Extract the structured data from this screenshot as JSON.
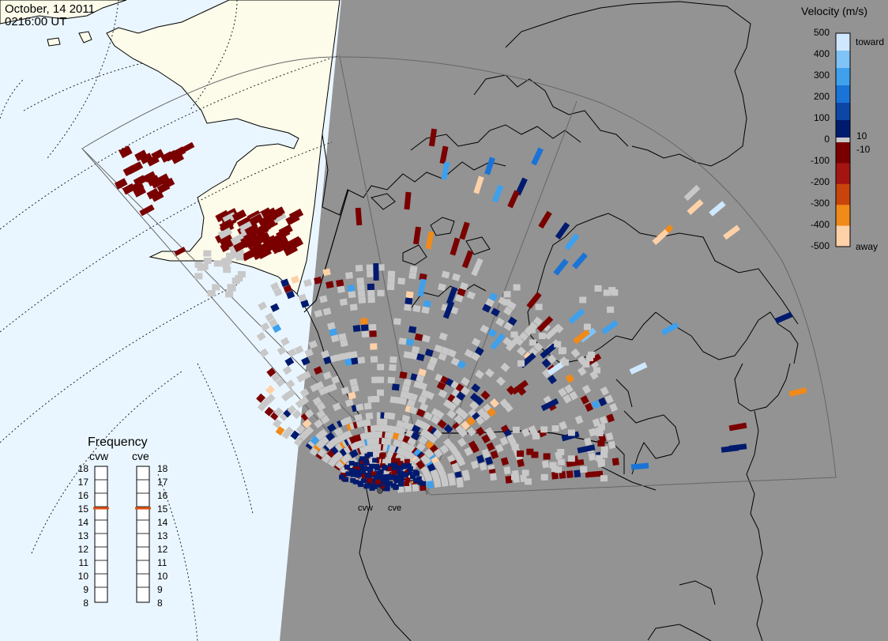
{
  "header": {
    "date": "October, 14 2011",
    "time": "0216:00 UT"
  },
  "colorbar": {
    "title": "Velocity (m/s)",
    "ticks": [
      "500",
      "400",
      "300",
      "200",
      "100",
      "0",
      "-100",
      "-200",
      "-300",
      "-400",
      "-500"
    ],
    "inner_ticks": [
      "10",
      "-10"
    ],
    "label_top": "toward",
    "label_bottom": "away",
    "colors": [
      "#cfe8ff",
      "#7fc3f7",
      "#3fa0ec",
      "#1a73d6",
      "#0d47a6",
      "#001a6e",
      "#c8c8c8",
      "#7a0000",
      "#a41512",
      "#c8440c",
      "#f08a19",
      "#ffd1a8"
    ]
  },
  "frequency": {
    "title": "Frequency",
    "radars": [
      "cvw",
      "cve"
    ],
    "values": [
      15,
      15
    ],
    "scale": [
      "18",
      "17",
      "16",
      "15",
      "14",
      "13",
      "12",
      "11",
      "10",
      "9",
      "8"
    ],
    "marker_color": "#e05010"
  },
  "map": {
    "radar_sites": [
      "cvw",
      "cve"
    ],
    "colors": {
      "night": "#939393",
      "ocean_day": "#eaf6ff",
      "land_day": "#fdfbea",
      "ground_scatter": "#c8c8c8"
    }
  }
}
